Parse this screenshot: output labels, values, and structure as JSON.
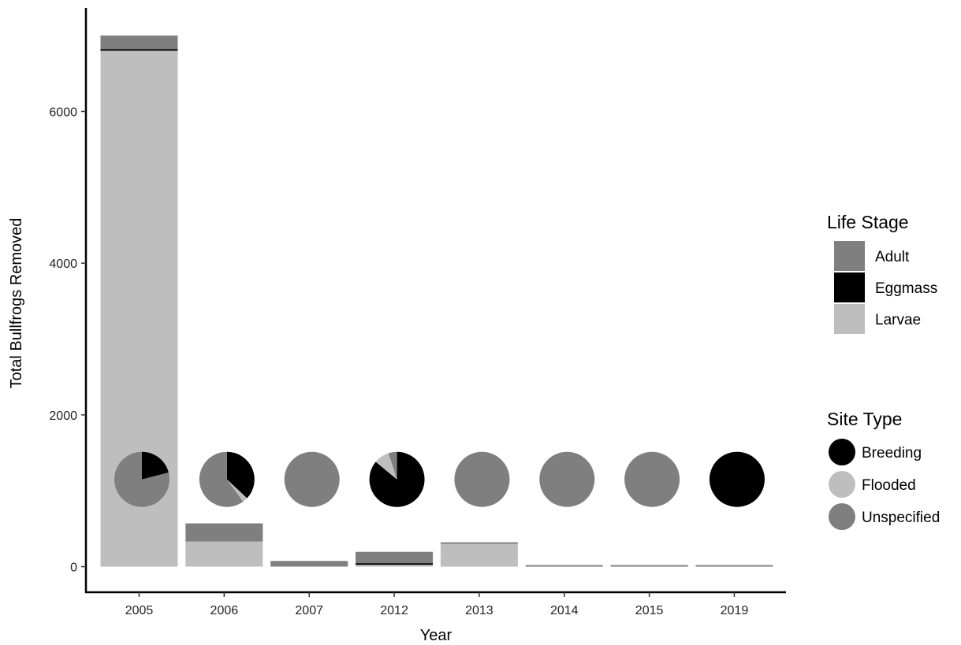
{
  "chart_data": {
    "type": "bar",
    "stacked": true,
    "xlabel": "Year",
    "ylabel": "Total Bullfrogs Removed",
    "categories": [
      "2005",
      "2006",
      "2007",
      "2012",
      "2013",
      "2014",
      "2015",
      "2019"
    ],
    "ylim": [
      -150,
      7300
    ],
    "yticks": [
      0,
      2000,
      4000,
      6000
    ],
    "grid": false,
    "series": [
      {
        "name": "Larvae",
        "color": "#bebebe",
        "values": [
          6800,
          330,
          0,
          25,
          300,
          0,
          0,
          0
        ]
      },
      {
        "name": "Eggmass",
        "color": "#000000",
        "values": [
          20,
          0,
          0,
          20,
          0,
          0,
          0,
          0
        ]
      },
      {
        "name": "Adult",
        "color": "#7f7f7f",
        "values": [
          180,
          240,
          75,
          150,
          15,
          8,
          8,
          8
        ]
      }
    ],
    "pie_baseline_value": 1150,
    "site_type_pies": [
      {
        "year": "2005",
        "shares": {
          "Breeding": 0.21,
          "Flooded": 0.0,
          "Unspecified": 0.79
        }
      },
      {
        "year": "2006",
        "shares": {
          "Breeding": 0.37,
          "Flooded": 0.03,
          "Unspecified": 0.6
        }
      },
      {
        "year": "2007",
        "shares": {
          "Breeding": 0.0,
          "Flooded": 0.0,
          "Unspecified": 1.0
        }
      },
      {
        "year": "2012",
        "shares": {
          "Breeding": 0.86,
          "Flooded": 0.09,
          "Unspecified": 0.05
        }
      },
      {
        "year": "2013",
        "shares": {
          "Breeding": 0.0,
          "Flooded": 0.0,
          "Unspecified": 1.0
        }
      },
      {
        "year": "2014",
        "shares": {
          "Breeding": 0.0,
          "Flooded": 0.0,
          "Unspecified": 1.0
        }
      },
      {
        "year": "2015",
        "shares": {
          "Breeding": 0.0,
          "Flooded": 0.0,
          "Unspecified": 1.0
        }
      },
      {
        "year": "2019",
        "shares": {
          "Breeding": 1.0,
          "Flooded": 0.0,
          "Unspecified": 0.0
        }
      }
    ],
    "legends": [
      {
        "title": "Life Stage",
        "shape": "square",
        "placement": "right",
        "entries": [
          {
            "label": "Adult",
            "color": "#7f7f7f"
          },
          {
            "label": "Eggmass",
            "color": "#000000"
          },
          {
            "label": "Larvae",
            "color": "#bebebe"
          }
        ]
      },
      {
        "title": "Site Type",
        "shape": "circle",
        "placement": "right",
        "entries": [
          {
            "label": "Breeding",
            "color": "#000000"
          },
          {
            "label": "Flooded",
            "color": "#bebebe"
          },
          {
            "label": "Unspecified",
            "color": "#7f7f7f"
          }
        ]
      }
    ]
  }
}
